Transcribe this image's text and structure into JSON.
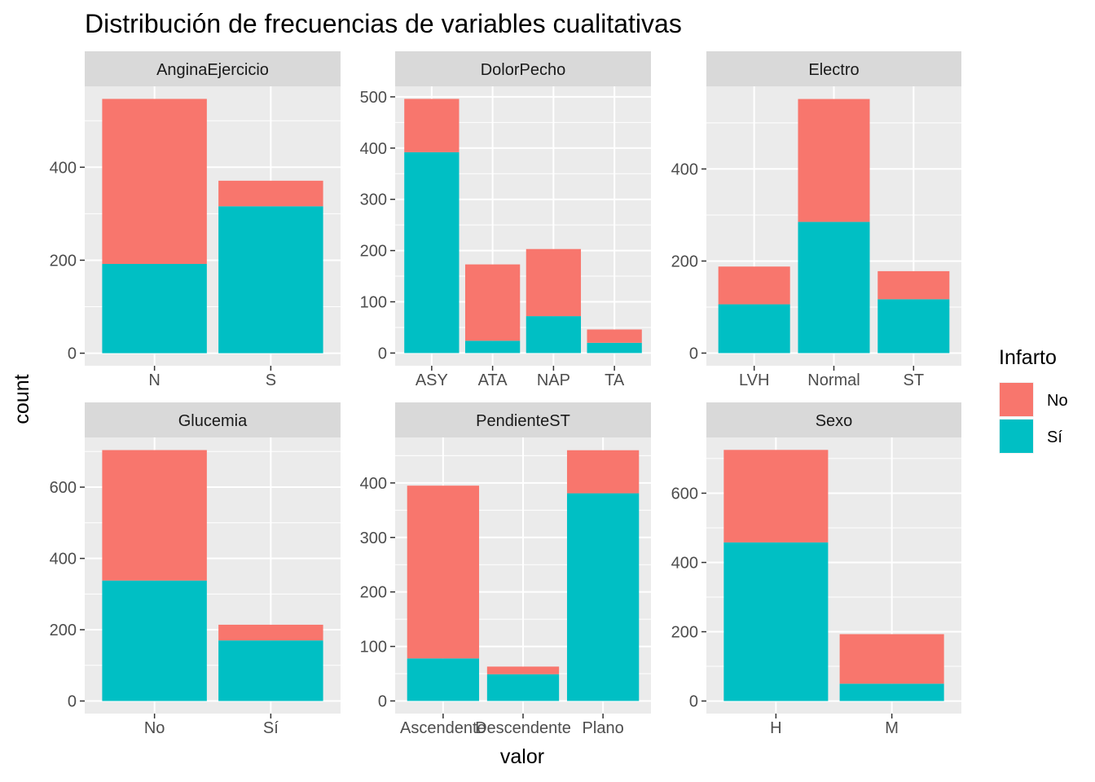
{
  "chart_data": {
    "type": "bar",
    "stacked": true,
    "title": "Distribución de frecuencias de variables cualitativas",
    "xlabel": "valor",
    "ylabel": "count",
    "legend": {
      "title": "Infarto",
      "position": "right",
      "entries": [
        {
          "name": "No",
          "color": "#F8766D"
        },
        {
          "name": "Sí",
          "color": "#00BFC4"
        }
      ]
    },
    "colors": {
      "panel_bg": "#EBEBEB",
      "strip_bg": "#D9D9D9",
      "grid": "#FFFFFF",
      "tick": "#333333"
    },
    "facets": [
      {
        "name": "AnginaEjercicio",
        "categories": [
          "N",
          "S"
        ],
        "series": [
          {
            "name": "Sí",
            "values": [
              192,
              316
            ]
          },
          {
            "name": "No",
            "values": [
              355,
              55
            ]
          }
        ],
        "ylim": [
          -27,
          574
        ],
        "yticks": [
          0,
          200,
          400
        ],
        "yminor": [
          100,
          300,
          500
        ]
      },
      {
        "name": "DolorPecho",
        "categories": [
          "ASY",
          "ATA",
          "NAP",
          "TA"
        ],
        "series": [
          {
            "name": "Sí",
            "values": [
              392,
              24,
              72,
              20
            ]
          },
          {
            "name": "No",
            "values": [
              104,
              149,
              131,
              26
            ]
          }
        ],
        "ylim": [
          -24.8,
          520.5
        ],
        "yticks": [
          0,
          100,
          200,
          300,
          400,
          500
        ],
        "yminor": [
          50,
          150,
          250,
          350,
          450
        ]
      },
      {
        "name": "Electro",
        "categories": [
          "LVH",
          "Normal",
          "ST"
        ],
        "series": [
          {
            "name": "Sí",
            "values": [
              106,
              285,
              117
            ]
          },
          {
            "name": "No",
            "values": [
              82,
              267,
              61
            ]
          }
        ],
        "ylim": [
          -27.5,
          579.5
        ],
        "yticks": [
          0,
          200,
          400
        ],
        "yminor": [
          100,
          300,
          500
        ]
      },
      {
        "name": "Glucemia",
        "categories": [
          "No",
          "Sí"
        ],
        "series": [
          {
            "name": "Sí",
            "values": [
              338,
              170
            ]
          },
          {
            "name": "No",
            "values": [
              366,
              44
            ]
          }
        ],
        "ylim": [
          -35.3,
          739.5
        ],
        "yticks": [
          0,
          200,
          400,
          600
        ],
        "yminor": [
          100,
          300,
          500,
          700
        ]
      },
      {
        "name": "PendienteST",
        "categories": [
          "Ascendente",
          "Descendente",
          "Plano"
        ],
        "series": [
          {
            "name": "Sí",
            "values": [
              78,
              49,
              381
            ]
          },
          {
            "name": "No",
            "values": [
              317,
              14,
              79
            ]
          }
        ],
        "ylim": [
          -23.2,
          483.5
        ],
        "yticks": [
          0,
          100,
          200,
          300,
          400
        ],
        "yminor": [
          50,
          150,
          250,
          350,
          450
        ]
      },
      {
        "name": "Sexo",
        "categories": [
          "H",
          "M"
        ],
        "series": [
          {
            "name": "Sí",
            "values": [
              458,
              50
            ]
          },
          {
            "name": "No",
            "values": [
              267,
              143
            ]
          }
        ],
        "ylim": [
          -36.3,
          761
        ],
        "yticks": [
          0,
          200,
          400,
          600
        ],
        "yminor": [
          100,
          300,
          500,
          700
        ]
      }
    ]
  }
}
